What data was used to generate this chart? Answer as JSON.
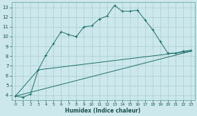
{
  "xlabel": "Humidex (Indice chaleur)",
  "bg_color": "#cce8ec",
  "grid_color": "#aacccc",
  "line_color": "#1a6e6a",
  "xlim": [
    -0.5,
    23.5
  ],
  "ylim": [
    3.5,
    13.5
  ],
  "xticks": [
    0,
    1,
    2,
    3,
    4,
    5,
    6,
    7,
    8,
    9,
    10,
    11,
    12,
    13,
    14,
    15,
    16,
    17,
    18,
    19,
    20,
    21,
    22,
    23
  ],
  "yticks": [
    4,
    5,
    6,
    7,
    8,
    9,
    10,
    11,
    12,
    13
  ],
  "curve_x": [
    0,
    1,
    2,
    3,
    4,
    5,
    6,
    7,
    8,
    9,
    10,
    11,
    12,
    13,
    14,
    15,
    16,
    17,
    18,
    19,
    20,
    21,
    22,
    23
  ],
  "curve_y": [
    3.9,
    3.8,
    4.1,
    6.6,
    8.1,
    9.3,
    10.5,
    10.2,
    10.0,
    11.0,
    11.1,
    11.8,
    12.1,
    13.2,
    12.6,
    12.6,
    12.7,
    11.7,
    10.7,
    9.5,
    8.3,
    8.3,
    8.5,
    8.6
  ],
  "line1_x": [
    0,
    23
  ],
  "line1_y": [
    3.9,
    8.5
  ],
  "line2_x": [
    0,
    3,
    23
  ],
  "line2_y": [
    3.9,
    6.6,
    8.5
  ],
  "xlabel_fontsize": 5.5,
  "tick_fontsize_x": 4.2,
  "tick_fontsize_y": 5.0
}
